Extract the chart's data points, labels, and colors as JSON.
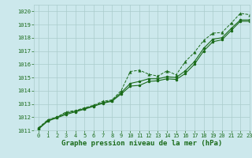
{
  "title": "Graphe pression niveau de la mer (hPa)",
  "bg_color": "#cce8ec",
  "grid_color": "#aacccc",
  "line_color": "#1a6b1a",
  "xlim": [
    -0.5,
    23
  ],
  "ylim": [
    1011,
    1020.5
  ],
  "yticks": [
    1011,
    1012,
    1013,
    1014,
    1015,
    1016,
    1017,
    1018,
    1019,
    1020
  ],
  "xticks": [
    0,
    1,
    2,
    3,
    4,
    5,
    6,
    7,
    8,
    9,
    10,
    11,
    12,
    13,
    14,
    15,
    16,
    17,
    18,
    19,
    20,
    21,
    22,
    23
  ],
  "s1_x": [
    0,
    1,
    2,
    3,
    4,
    5,
    6,
    7,
    8,
    9,
    10,
    11,
    12,
    13,
    14,
    15,
    16,
    17,
    18,
    19,
    20,
    21,
    22,
    23
  ],
  "s1_y": [
    1011.2,
    1011.8,
    1012.0,
    1012.4,
    1012.5,
    1012.7,
    1012.9,
    1013.2,
    1013.3,
    1014.0,
    1015.45,
    1015.55,
    1015.25,
    1015.1,
    1015.5,
    1015.2,
    1016.2,
    1016.9,
    1017.8,
    1018.35,
    1018.4,
    1019.1,
    1019.85,
    1019.75
  ],
  "s2_x": [
    0,
    1,
    2,
    3,
    4,
    5,
    6,
    7,
    8,
    9,
    10,
    11,
    12,
    13,
    14,
    15,
    16,
    17,
    18,
    19,
    20,
    21,
    22,
    23
  ],
  "s2_y": [
    1011.15,
    1011.75,
    1012.0,
    1012.3,
    1012.45,
    1012.65,
    1012.85,
    1013.1,
    1013.25,
    1013.85,
    1014.55,
    1014.7,
    1014.9,
    1014.9,
    1015.05,
    1015.0,
    1015.5,
    1016.2,
    1017.2,
    1017.9,
    1018.0,
    1018.7,
    1019.35,
    1019.35
  ],
  "s3_x": [
    0,
    1,
    2,
    3,
    4,
    5,
    6,
    7,
    8,
    9,
    10,
    11,
    12,
    13,
    14,
    15,
    16,
    17,
    18,
    19,
    20,
    21,
    22,
    23
  ],
  "s3_y": [
    1011.1,
    1011.7,
    1011.95,
    1012.2,
    1012.4,
    1012.6,
    1012.82,
    1013.05,
    1013.2,
    1013.75,
    1014.35,
    1014.4,
    1014.7,
    1014.75,
    1014.9,
    1014.85,
    1015.3,
    1016.0,
    1017.0,
    1017.7,
    1017.85,
    1018.55,
    1019.25,
    1019.25
  ]
}
